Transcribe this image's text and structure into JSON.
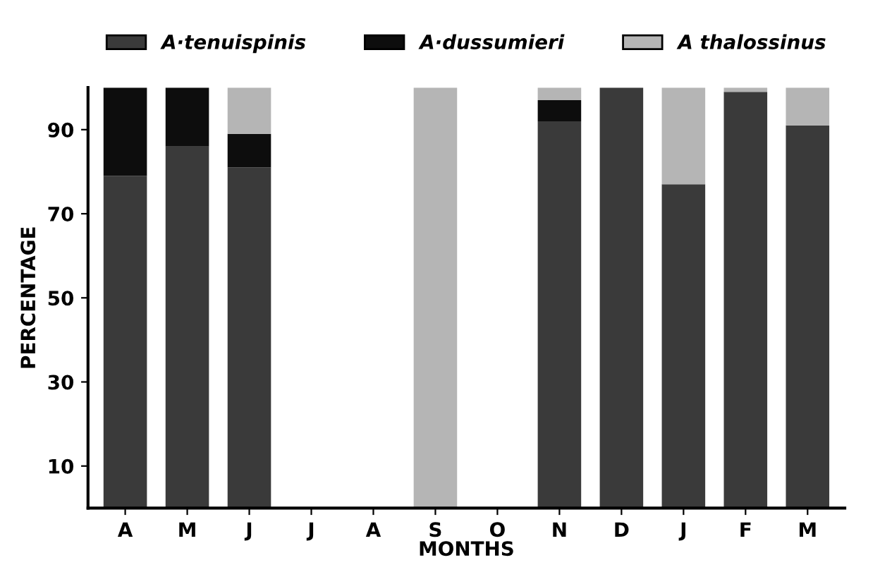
{
  "chart_data": {
    "type": "bar",
    "stacked": true,
    "xlabel": "MONTHS",
    "ylabel": "PERCENTAGE",
    "categories": [
      "A",
      "M",
      "J",
      "J",
      "A",
      "S",
      "O",
      "N",
      "D",
      "J",
      "F",
      "M"
    ],
    "series": [
      {
        "name": "A·tenuispinis",
        "color": "#3a3a3a",
        "values": [
          79,
          86,
          81,
          0,
          0,
          0,
          0,
          92,
          100,
          77,
          99,
          91
        ]
      },
      {
        "name": "A·dussumieri",
        "color": "#0d0d0d",
        "values": [
          21,
          14,
          8,
          0,
          0,
          0,
          0,
          5,
          0,
          0,
          0,
          0
        ]
      },
      {
        "name": "A thalossinus",
        "color": "#b5b5b5",
        "values": [
          0,
          0,
          11,
          0,
          0,
          100,
          0,
          3,
          0,
          23,
          1,
          9
        ]
      }
    ],
    "ylim": [
      0,
      100
    ],
    "yticks": [
      10,
      30,
      50,
      70,
      90
    ],
    "grid": false,
    "legend": "top"
  }
}
